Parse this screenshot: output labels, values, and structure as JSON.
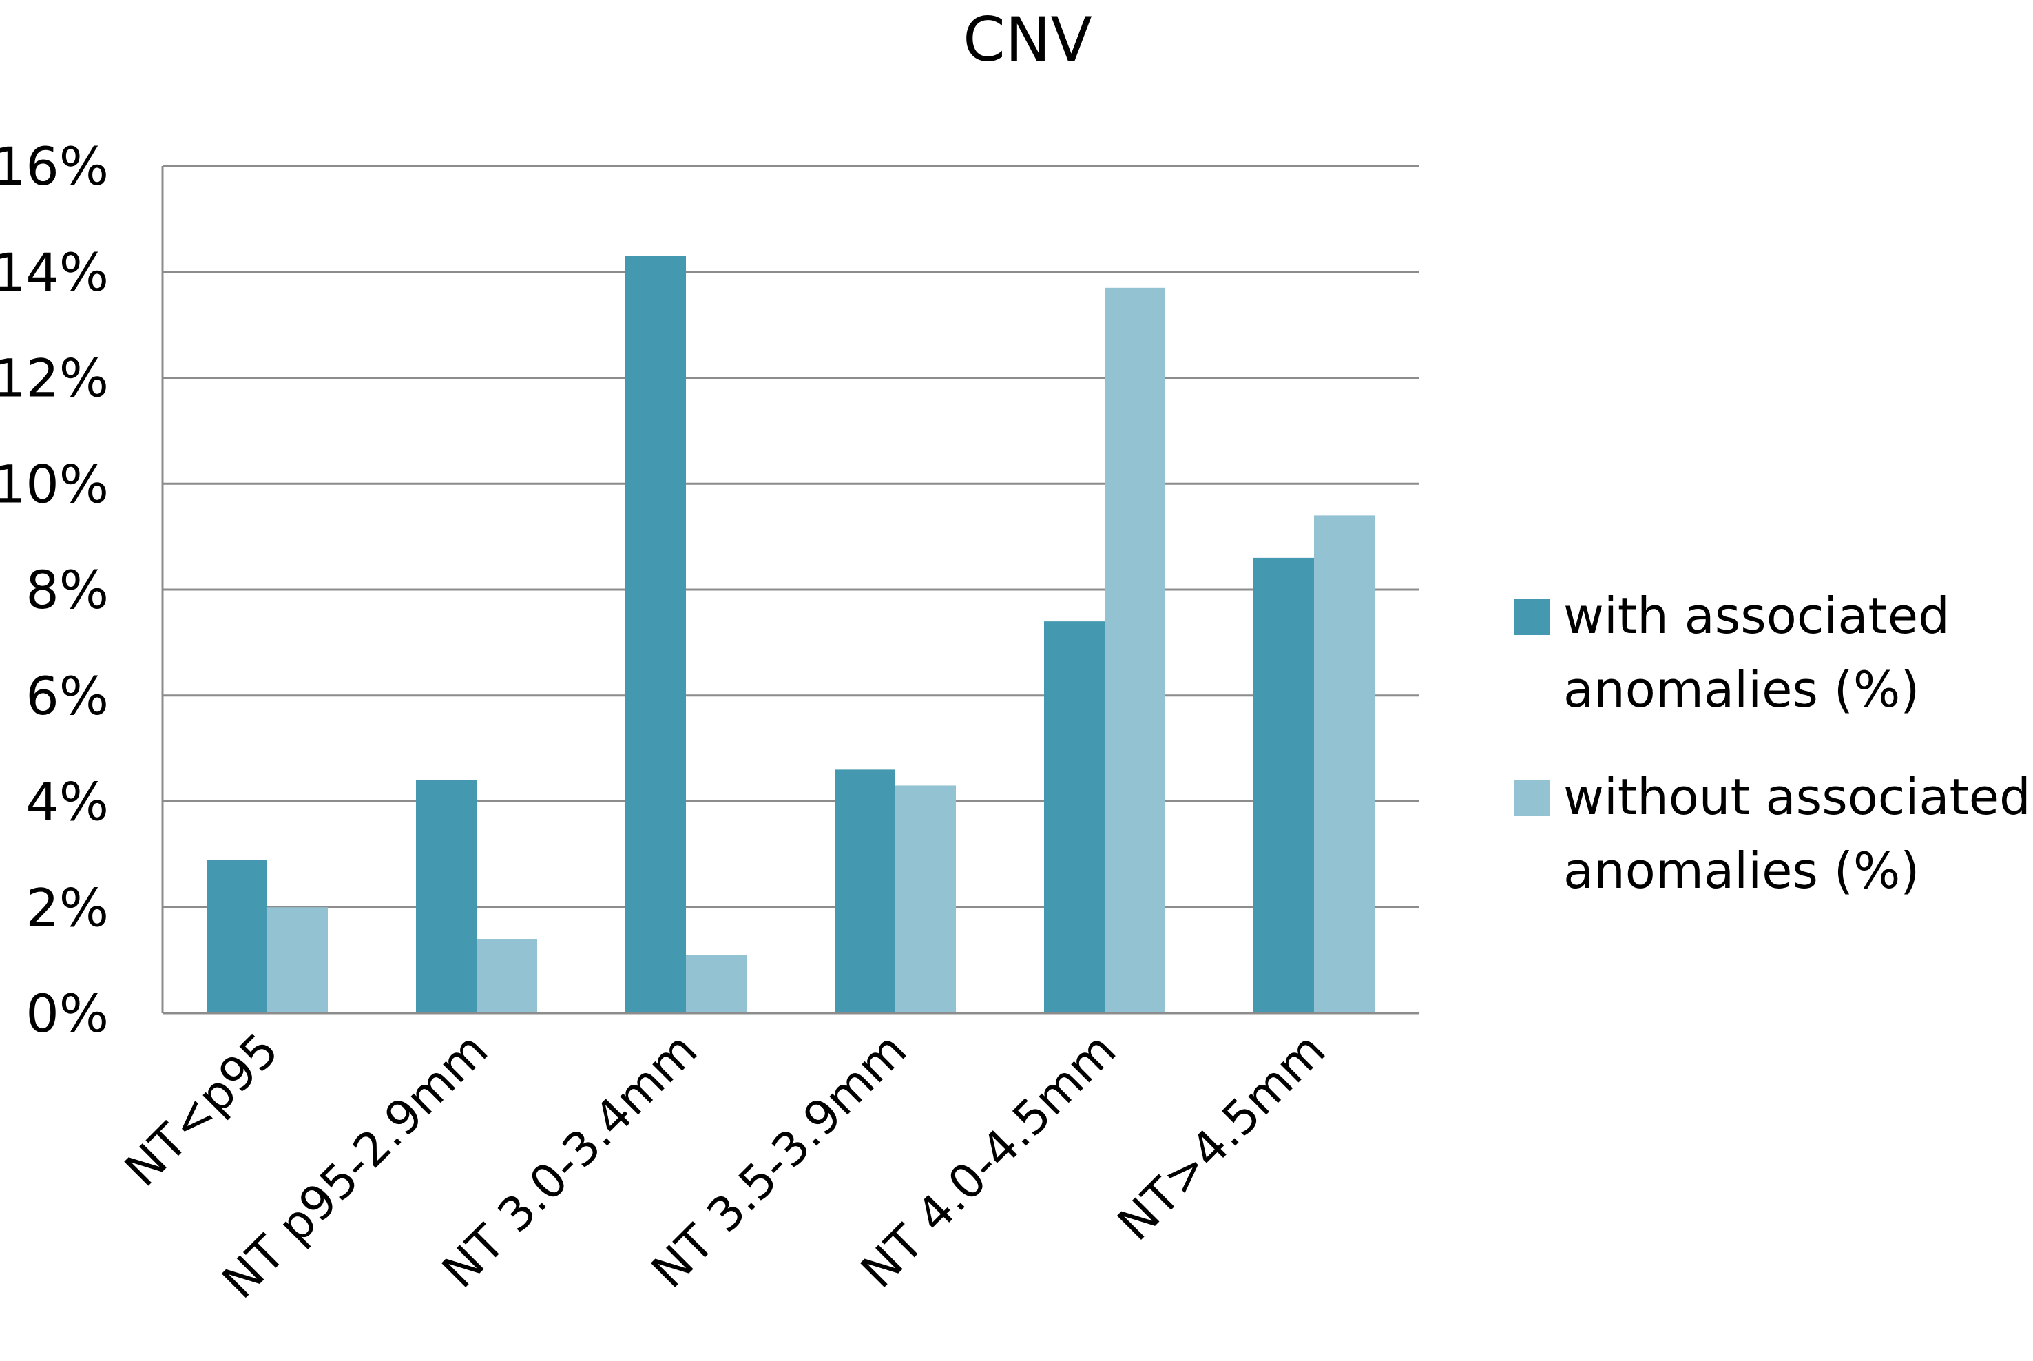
{
  "chart_data": {
    "type": "bar",
    "title": "CNV",
    "xlabel": "",
    "ylabel": "",
    "categories": [
      "NT<p95",
      "NT p95-2.9mm",
      "NT 3.0-3.4mm",
      "NT 3.5-3.9mm",
      "NT 4.0-4.5mm",
      "NT>4.5mm"
    ],
    "series": [
      {
        "name": "with associated anomalies (%)",
        "name_lines": [
          "with associated",
          "anomalies (%)"
        ],
        "color": "#4499B0",
        "values": [
          2.9,
          4.4,
          14.3,
          4.6,
          7.4,
          8.6
        ]
      },
      {
        "name": "without associated anomalies (%)",
        "name_lines": [
          "without associated",
          "anomalies (%)"
        ],
        "color": "#93C2D3",
        "values": [
          2.0,
          1.4,
          1.1,
          4.3,
          13.7,
          9.4
        ]
      }
    ],
    "ylim": [
      0,
      16
    ],
    "yticks": [
      0,
      2,
      4,
      6,
      8,
      10,
      12,
      14,
      16
    ],
    "ytick_labels": [
      "0%",
      "2%",
      "4%",
      "6%",
      "8%",
      "10%",
      "12%",
      "14%",
      "16%"
    ],
    "grid": true,
    "legend_position": "right",
    "colors": {
      "gridline": "#8C8C8C",
      "axis": "#8C8C8C",
      "text": "#000000"
    }
  }
}
